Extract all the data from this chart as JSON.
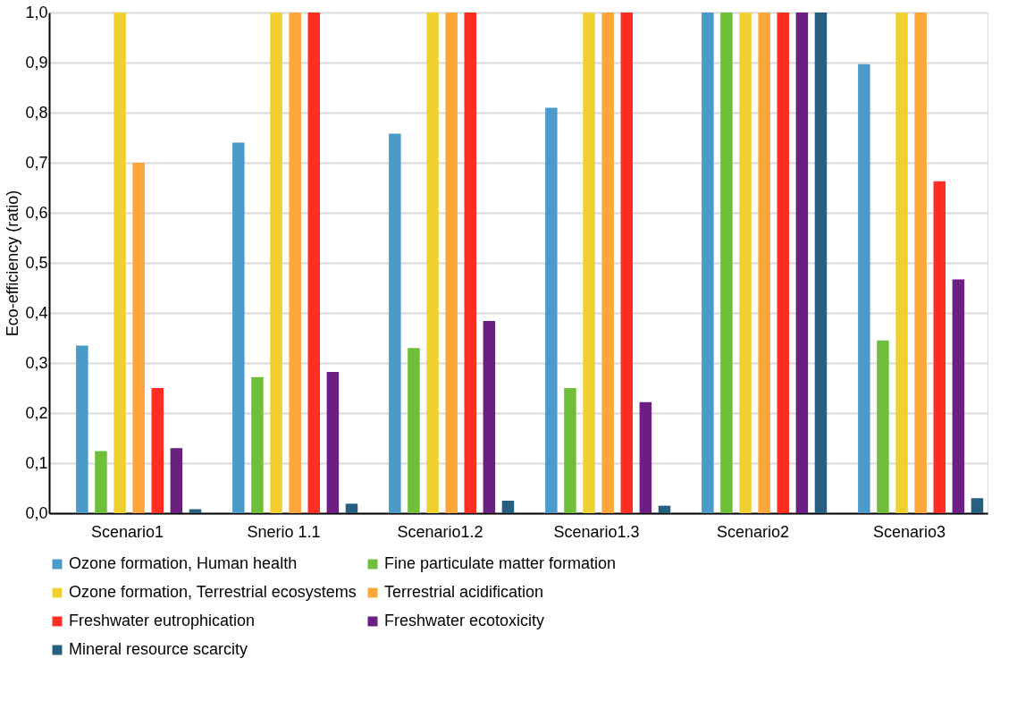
{
  "chart_data": {
    "type": "bar",
    "ylabel": "Eco-efficiency (ratio)",
    "categories": [
      "Scenario1",
      "Snerio 1.1",
      "Scenario1.2",
      "Scenario1.3",
      "Scenario2",
      "Scenario3"
    ],
    "series": [
      {
        "name": "Ozone formation, Human health",
        "color": "#4a9bca",
        "values": [
          0.335,
          0.74,
          0.758,
          0.81,
          1.0,
          0.897
        ]
      },
      {
        "name": "Fine particulate matter formation",
        "color": "#70bf3b",
        "values": [
          0.124,
          0.272,
          0.33,
          0.25,
          1.0,
          0.345
        ]
      },
      {
        "name": "Ozone formation, Terrestrial ecosystems",
        "color": "#f0d030",
        "values": [
          1.0,
          1.0,
          1.0,
          1.0,
          1.0,
          1.0
        ]
      },
      {
        "name": "Terrestrial acidification",
        "color": "#fda63a",
        "values": [
          0.7,
          1.0,
          1.0,
          1.0,
          1.0,
          1.0
        ]
      },
      {
        "name": "Freshwater eutrophication",
        "color": "#ff2d22",
        "values": [
          0.25,
          1.0,
          1.0,
          1.0,
          1.0,
          0.663
        ]
      },
      {
        "name": "Freshwater ecotoxicity",
        "color": "#6b1f82",
        "values": [
          0.13,
          0.282,
          0.384,
          0.222,
          1.0,
          0.467
        ]
      },
      {
        "name": "Mineral resource scarcity",
        "color": "#275f80",
        "values": [
          0.008,
          0.019,
          0.025,
          0.015,
          1.0,
          0.03
        ]
      }
    ],
    "ylim": [
      0,
      1.0
    ],
    "yticks": [
      {
        "value": 0,
        "label": "0,0"
      },
      {
        "value": 0.1,
        "label": "0,1"
      },
      {
        "value": 0.2,
        "label": "0,2"
      },
      {
        "value": 0.3,
        "label": "0,3"
      },
      {
        "value": 0.4,
        "label": "0,4"
      },
      {
        "value": 0.5,
        "label": "0,5"
      },
      {
        "value": 0.6,
        "label": "0,6"
      },
      {
        "value": 0.7,
        "label": "0,7"
      },
      {
        "value": 0.8,
        "label": "0,8"
      },
      {
        "value": 0.9,
        "label": "0,9"
      },
      {
        "value": 1.0,
        "label": "1,0"
      }
    ],
    "grid": "y",
    "legend": "bottom"
  }
}
